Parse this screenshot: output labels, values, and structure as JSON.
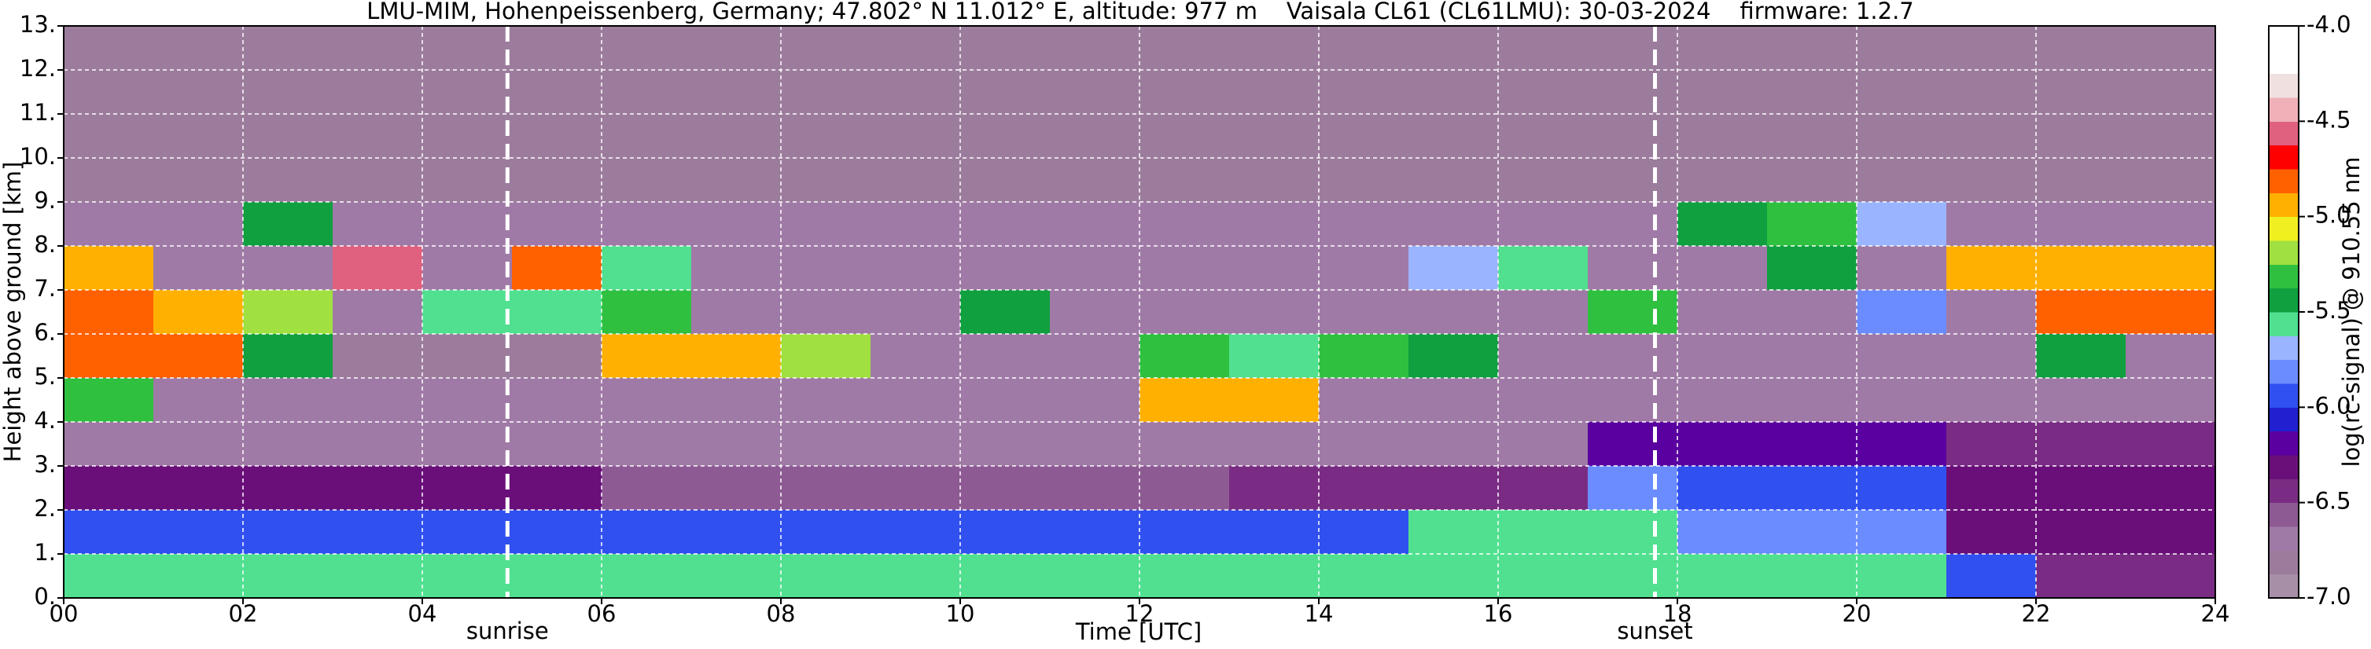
{
  "chart_data": {
    "type": "heatmap",
    "title": "LMU-MIM, Hohenpeissenberg, Germany; 47.802° N 11.012° E, altitude: 977 m    Vaisala CL61 (CL61LMU): 30-03-2024    firmware: 1.2.7",
    "xlabel": "Time [UTC]",
    "ylabel": "Height above ground [km]",
    "colorbar_label": "log(rc-signal) @ 910.55 nm",
    "xlim": [
      0,
      24
    ],
    "ylim": [
      0,
      13
    ],
    "clim": [
      -7,
      -4
    ],
    "grid": true,
    "xticks": [
      {
        "value": 0,
        "label": "00"
      },
      {
        "value": 2,
        "label": "02"
      },
      {
        "value": 4,
        "label": "04"
      },
      {
        "value": 6,
        "label": "06"
      },
      {
        "value": 8,
        "label": "08"
      },
      {
        "value": 10,
        "label": "10"
      },
      {
        "value": 12,
        "label": "12"
      },
      {
        "value": 14,
        "label": "14"
      },
      {
        "value": 16,
        "label": "16"
      },
      {
        "value": 18,
        "label": "18"
      },
      {
        "value": 20,
        "label": "20"
      },
      {
        "value": 22,
        "label": "22"
      },
      {
        "value": 24,
        "label": "24"
      }
    ],
    "yticks": [
      {
        "value": 0,
        "label": "0."
      },
      {
        "value": 1,
        "label": "1."
      },
      {
        "value": 2,
        "label": "2."
      },
      {
        "value": 3,
        "label": "3."
      },
      {
        "value": 4,
        "label": "4."
      },
      {
        "value": 5,
        "label": "5."
      },
      {
        "value": 6,
        "label": "6."
      },
      {
        "value": 7,
        "label": "7."
      },
      {
        "value": 8,
        "label": "8."
      },
      {
        "value": 9,
        "label": "9."
      },
      {
        "value": 10,
        "label": "10."
      },
      {
        "value": 11,
        "label": "11."
      },
      {
        "value": 12,
        "label": "12."
      },
      {
        "value": 13,
        "label": "13."
      }
    ],
    "cticks": [
      {
        "value": -4,
        "label": "-4.0"
      },
      {
        "value": -4.5,
        "label": "-4.5"
      },
      {
        "value": -5,
        "label": "-5.0"
      },
      {
        "value": -5.5,
        "label": "-5.5"
      },
      {
        "value": -6,
        "label": "-6.0"
      },
      {
        "value": -6.5,
        "label": "-6.5"
      },
      {
        "value": -7,
        "label": "-7.0"
      }
    ],
    "colors": [
      "#a88fa8",
      "#9c7c9c",
      "#a07aa6",
      "#8e5a94",
      "#7a2c84",
      "#6a0f7a",
      "#5a00a0",
      "#2020d0",
      "#3050f0",
      "#6a8cff",
      "#9ab4ff",
      "#50e090",
      "#10a040",
      "#30c040",
      "#a0e040",
      "#f0f020",
      "#ffb000",
      "#ff6000",
      "#ff0000",
      "#e06080",
      "#f0b0b8",
      "#f0e0e0",
      "#ffffff",
      "#ffffff"
    ],
    "annotations": [
      {
        "x": 4.95,
        "text": "sunrise"
      },
      {
        "x": 17.75,
        "text": "sunset"
      }
    ],
    "x_bins": [
      0,
      1,
      2,
      3,
      4,
      5,
      6,
      7,
      8,
      9,
      10,
      11,
      12,
      13,
      14,
      15,
      16,
      17,
      18,
      19,
      20,
      21,
      22,
      23,
      24
    ],
    "y_bins": [
      0,
      1,
      2,
      3,
      4,
      5,
      6,
      7,
      8,
      9,
      10,
      11,
      12,
      13
    ],
    "values": [
      [
        -5.6,
        -5.6,
        -5.6,
        -5.6,
        -5.6,
        -5.6,
        -5.6,
        -5.6,
        -5.6,
        -5.6,
        -5.6,
        -5.6,
        -5.6,
        -5.6,
        -5.6,
        -5.6,
        -5.6,
        -5.6,
        -5.6,
        -5.6,
        -5.6,
        -5.9,
        -6.4,
        -6.4
      ],
      [
        -6.0,
        -6.0,
        -6.0,
        -6.0,
        -6.0,
        -6.0,
        -6.0,
        -6.0,
        -6.0,
        -6.0,
        -6.0,
        -6.0,
        -6.0,
        -6.0,
        -6.0,
        -5.6,
        -5.6,
        -5.6,
        -5.8,
        -5.8,
        -5.8,
        -6.3,
        -6.3,
        -6.3
      ],
      [
        -6.3,
        -6.3,
        -6.3,
        -6.3,
        -6.3,
        -6.3,
        -6.6,
        -6.6,
        -6.6,
        -6.6,
        -6.6,
        -6.6,
        -6.6,
        -6.5,
        -6.5,
        -6.5,
        -6.5,
        -5.8,
        -6.0,
        -6.0,
        -6.0,
        -6.3,
        -6.3,
        -6.3
      ],
      [
        -6.7,
        -6.7,
        -6.7,
        -6.7,
        -6.7,
        -6.7,
        -6.7,
        -6.7,
        -6.7,
        -6.7,
        -6.7,
        -6.7,
        -6.7,
        -6.7,
        -6.7,
        -6.7,
        -6.7,
        -6.2,
        -6.2,
        -6.2,
        -6.2,
        -6.5,
        -6.5,
        -6.5
      ],
      [
        -5.3,
        -6.7,
        -6.7,
        -6.7,
        -6.7,
        -6.7,
        -6.7,
        -6.7,
        -6.7,
        -6.7,
        -6.7,
        -6.7,
        -5.0,
        -5.0,
        -6.7,
        -6.7,
        -6.7,
        -6.7,
        -6.7,
        -6.7,
        -6.7,
        -6.7,
        -6.7,
        -6.7
      ],
      [
        -4.8,
        -4.8,
        -5.4,
        -6.8,
        -6.8,
        -6.8,
        -5.0,
        -4.9,
        -5.2,
        -6.7,
        -6.7,
        -6.7,
        -5.3,
        -5.6,
        -5.3,
        -5.4,
        -6.7,
        -6.7,
        -6.7,
        -6.7,
        -6.7,
        -6.7,
        -5.4,
        -6.7
      ],
      [
        -4.8,
        -4.9,
        -5.2,
        -6.7,
        -5.6,
        -5.6,
        -5.3,
        -6.7,
        -6.7,
        -6.7,
        -5.5,
        -6.7,
        -6.7,
        -6.7,
        -6.7,
        -6.7,
        -6.7,
        -5.3,
        -6.7,
        -6.7,
        -5.8,
        -6.7,
        -4.8,
        -4.8
      ],
      [
        -5.0,
        -6.7,
        -6.7,
        -4.6,
        -6.7,
        -4.8,
        -5.6,
        -6.7,
        -6.7,
        -6.7,
        -6.7,
        -6.7,
        -6.7,
        -6.7,
        -6.7,
        -5.7,
        -5.6,
        -6.7,
        -6.7,
        -5.4,
        -6.7,
        -4.9,
        -5.0,
        -4.9
      ],
      [
        -6.7,
        -6.7,
        -5.5,
        -6.7,
        -6.7,
        -6.7,
        -6.7,
        -6.7,
        -6.7,
        -6.7,
        -6.7,
        -6.7,
        -6.7,
        -6.7,
        -6.7,
        -6.7,
        -6.7,
        -6.7,
        -5.4,
        -5.3,
        -5.7,
        -6.7,
        -6.7,
        -6.7
      ],
      [
        -6.8,
        -6.8,
        -6.8,
        -6.8,
        -6.8,
        -6.8,
        -6.8,
        -6.8,
        -6.8,
        -6.8,
        -6.8,
        -6.8,
        -6.8,
        -6.8,
        -6.8,
        -6.8,
        -6.8,
        -6.8,
        -6.8,
        -6.8,
        -6.8,
        -6.8,
        -6.8,
        -6.8
      ],
      [
        -6.8,
        -6.8,
        -6.8,
        -6.8,
        -6.8,
        -6.8,
        -6.8,
        -6.8,
        -6.8,
        -6.8,
        -6.8,
        -6.8,
        -6.8,
        -6.8,
        -6.8,
        -6.8,
        -6.8,
        -6.8,
        -6.8,
        -6.8,
        -6.8,
        -6.8,
        -6.8,
        -6.8
      ],
      [
        -6.8,
        -6.8,
        -6.8,
        -6.8,
        -6.8,
        -6.8,
        -6.8,
        -6.8,
        -6.8,
        -6.8,
        -6.8,
        -6.8,
        -6.8,
        -6.8,
        -6.8,
        -6.8,
        -6.8,
        -6.8,
        -6.8,
        -6.8,
        -6.8,
        -6.8,
        -6.8,
        -6.8
      ],
      [
        -6.8,
        -6.8,
        -6.8,
        -6.8,
        -6.8,
        -6.8,
        -6.8,
        -6.8,
        -6.8,
        -6.8,
        -6.8,
        -6.8,
        -6.8,
        -6.8,
        -6.8,
        -6.8,
        -6.8,
        -6.8,
        -6.8,
        -6.8,
        -6.8,
        -6.8,
        -6.8,
        -6.8
      ]
    ]
  }
}
